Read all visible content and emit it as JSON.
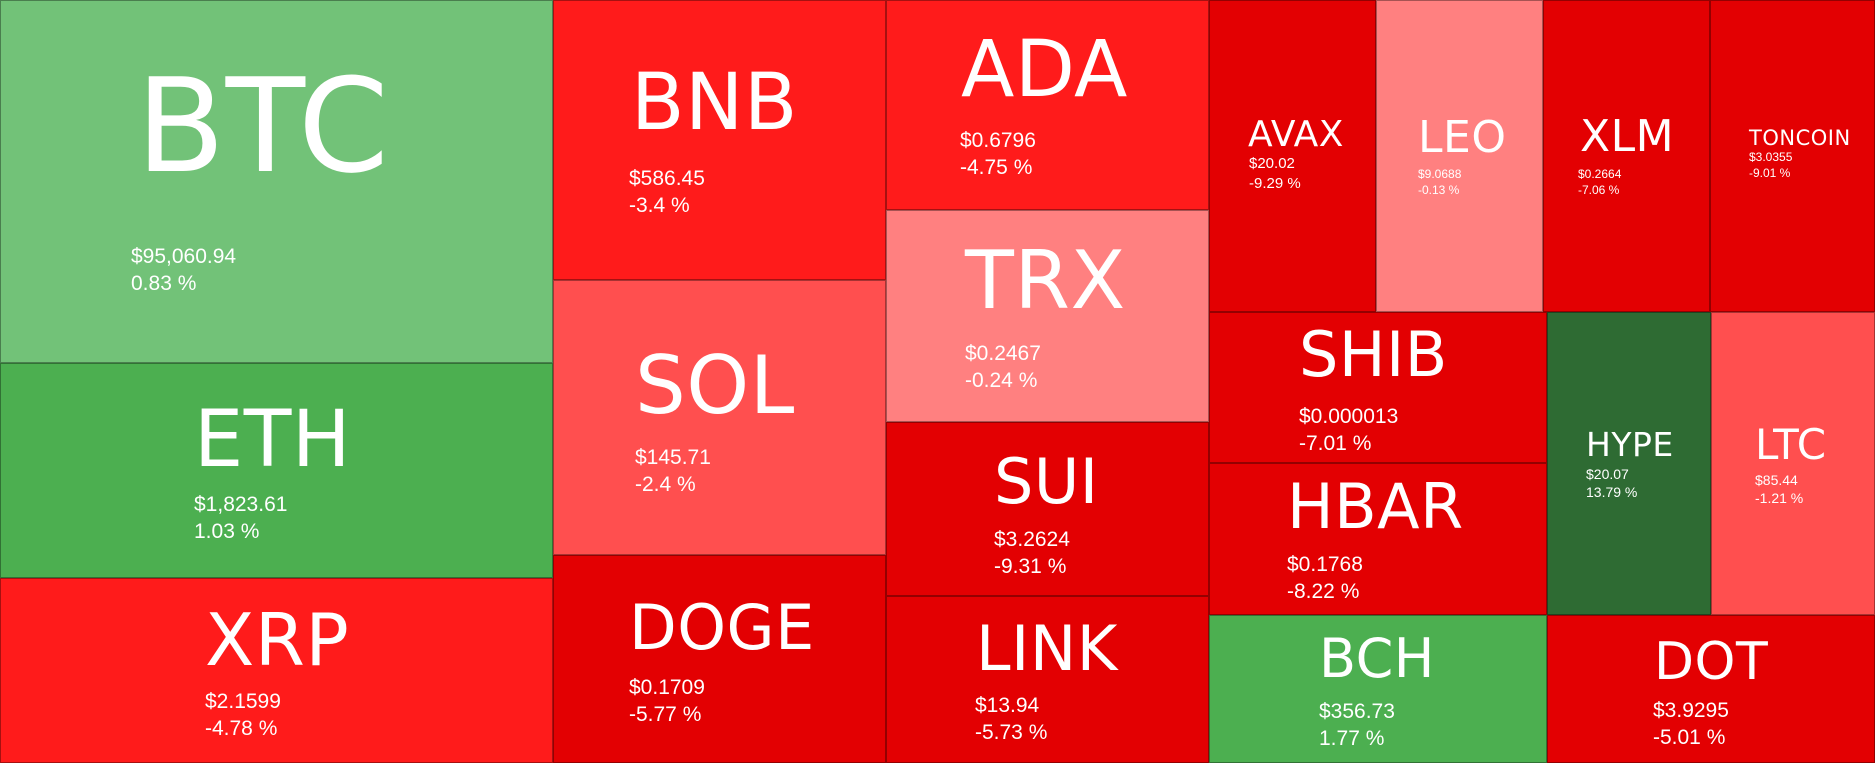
{
  "colors": {
    "strong_green": "#4CAF50",
    "light_green": "#72C278",
    "dark_green": "#2E6B33",
    "strong_red": "#E30002",
    "red": "#FF1B1B",
    "light_red": "#FF4F4F",
    "pale_red": "#FF8080",
    "text": "#FFFFFF"
  },
  "coins": [
    {
      "symbol": "BTC",
      "price": "$95,060.94",
      "change": "0.83 %",
      "color": "#72C278"
    },
    {
      "symbol": "ETH",
      "price": "$1,823.61",
      "change": "1.03 %",
      "color": "#4CAF50"
    },
    {
      "symbol": "XRP",
      "price": "$2.1599",
      "change": "-4.78 %",
      "color": "#FF1B1B"
    },
    {
      "symbol": "BNB",
      "price": "$586.45",
      "change": "-3.4 %",
      "color": "#FF1B1B"
    },
    {
      "symbol": "SOL",
      "price": "$145.71",
      "change": "-2.4 %",
      "color": "#FF4F4F"
    },
    {
      "symbol": "DOGE",
      "price": "$0.1709",
      "change": "-5.77 %",
      "color": "#E30002"
    },
    {
      "symbol": "ADA",
      "price": "$0.6796",
      "change": "-4.75 %",
      "color": "#FF1B1B"
    },
    {
      "symbol": "TRX",
      "price": "$0.2467",
      "change": "-0.24 %",
      "color": "#FF8080"
    },
    {
      "symbol": "SUI",
      "price": "$3.2624",
      "change": "-9.31 %",
      "color": "#E30002"
    },
    {
      "symbol": "LINK",
      "price": "$13.94",
      "change": "-5.73 %",
      "color": "#E30002"
    },
    {
      "symbol": "AVAX",
      "price": "$20.02",
      "change": "-9.29 %",
      "color": "#E30002"
    },
    {
      "symbol": "LEO",
      "price": "$9.0688",
      "change": "-0.13 %",
      "color": "#FF8080"
    },
    {
      "symbol": "XLM",
      "price": "$0.2664",
      "change": "-7.06 %",
      "color": "#E30002"
    },
    {
      "symbol": "TONCOIN",
      "price": "$3.0355",
      "change": "-9.01 %",
      "color": "#E30002"
    },
    {
      "symbol": "SHIB",
      "price": "$0.000013",
      "change": "-7.01 %",
      "color": "#E30002"
    },
    {
      "symbol": "HBAR",
      "price": "$0.1768",
      "change": "-8.22 %",
      "color": "#E30002"
    },
    {
      "symbol": "BCH",
      "price": "$356.73",
      "change": "1.77 %",
      "color": "#4CAF50"
    },
    {
      "symbol": "HYPE",
      "price": "$20.07",
      "change": "13.79 %",
      "color": "#2E6B33"
    },
    {
      "symbol": "LTC",
      "price": "$85.44",
      "change": "-1.21 %",
      "color": "#FF4F4F"
    },
    {
      "symbol": "DOT",
      "price": "$3.9295",
      "change": "-5.01 %",
      "color": "#E30002"
    }
  ]
}
